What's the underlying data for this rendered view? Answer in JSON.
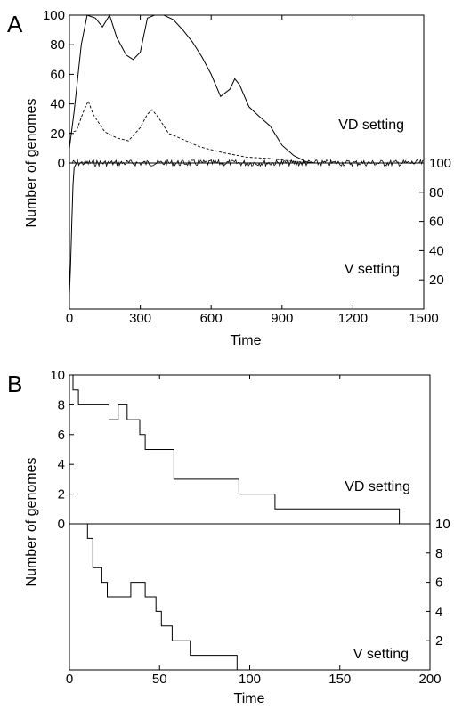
{
  "chart_data": [
    {
      "type": "line",
      "panel_label": "A",
      "xlabel": "Time",
      "ylabel": "Number of genomes",
      "xlim": [
        0,
        1500
      ],
      "xticks": [
        "0",
        "300",
        "600",
        "900",
        "1200",
        "1500"
      ],
      "top": {
        "annotation": "VD setting",
        "ylim": [
          0,
          100
        ],
        "yticks": [
          "0",
          "20",
          "40",
          "60",
          "80",
          "100"
        ],
        "series": [
          {
            "style": "solid",
            "x": [
              0,
              20,
              50,
              75,
              110,
              140,
              170,
              200,
              240,
              270,
              300,
              330,
              360,
              400,
              440,
              480,
              520,
              560,
              600,
              640,
              680,
              700,
              720,
              760,
              800,
              850,
              900,
              950,
              1000,
              1020,
              1040
            ],
            "y": [
              10,
              35,
              80,
              100,
              98,
              92,
              100,
              85,
              73,
              70,
              75,
              98,
              100,
              100,
              97,
              90,
              82,
              72,
              60,
              45,
              50,
              57,
              53,
              38,
              32,
              25,
              12,
              5,
              1,
              0,
              0
            ]
          },
          {
            "style": "dashed",
            "x": [
              0,
              30,
              60,
              80,
              100,
              150,
              200,
              250,
              300,
              330,
              350,
              380,
              420,
              480,
              550,
              650,
              750,
              850,
              950,
              1050
            ],
            "y": [
              20,
              22,
              35,
              42,
              33,
              21,
              17,
              15,
              24,
              33,
              36,
              30,
              20,
              16,
              11,
              7,
              4,
              3,
              1,
              0
            ]
          }
        ]
      },
      "bottom": {
        "annotation": "V setting",
        "ylim": [
          0,
          100
        ],
        "yticks": [
          "20",
          "40",
          "60",
          "80",
          "100"
        ],
        "series": [
          {
            "style": "solid",
            "x": [
              0,
              5,
              10,
              15,
              20,
              30,
              1500
            ],
            "y": [
              10,
              30,
              60,
              85,
              97,
              100,
              100
            ]
          }
        ]
      }
    },
    {
      "type": "line",
      "panel_label": "B",
      "xlabel": "Time",
      "ylabel": "Number of genomes",
      "xlim": [
        0,
        200
      ],
      "xticks": [
        "0",
        "50",
        "100",
        "150",
        "200"
      ],
      "top": {
        "annotation": "VD setting",
        "ylim": [
          0,
          10
        ],
        "yticks": [
          "0",
          "2",
          "4",
          "6",
          "8",
          "10"
        ],
        "series": [
          {
            "style": "step",
            "x": [
              0,
              2,
              5,
              22,
              27,
              32,
              39,
              42,
              45,
              58,
              94,
              114,
              183,
              184
            ],
            "y": [
              10,
              9,
              8,
              7,
              8,
              7,
              6,
              5,
              5,
              3,
              2,
              1,
              0,
              0
            ]
          }
        ]
      },
      "bottom": {
        "annotation": "V setting",
        "ylim": [
          0,
          10
        ],
        "yticks": [
          "2",
          "4",
          "6",
          "8",
          "10"
        ],
        "series": [
          {
            "style": "step",
            "x": [
              9,
              10,
              13,
              18,
              21,
              34,
              42,
              48,
              51,
              57,
              67,
              93,
              183,
              184
            ],
            "y": [
              10,
              9,
              7,
              6,
              5,
              6,
              5,
              4,
              3,
              2,
              1,
              0,
              0,
              0
            ]
          }
        ]
      }
    }
  ]
}
